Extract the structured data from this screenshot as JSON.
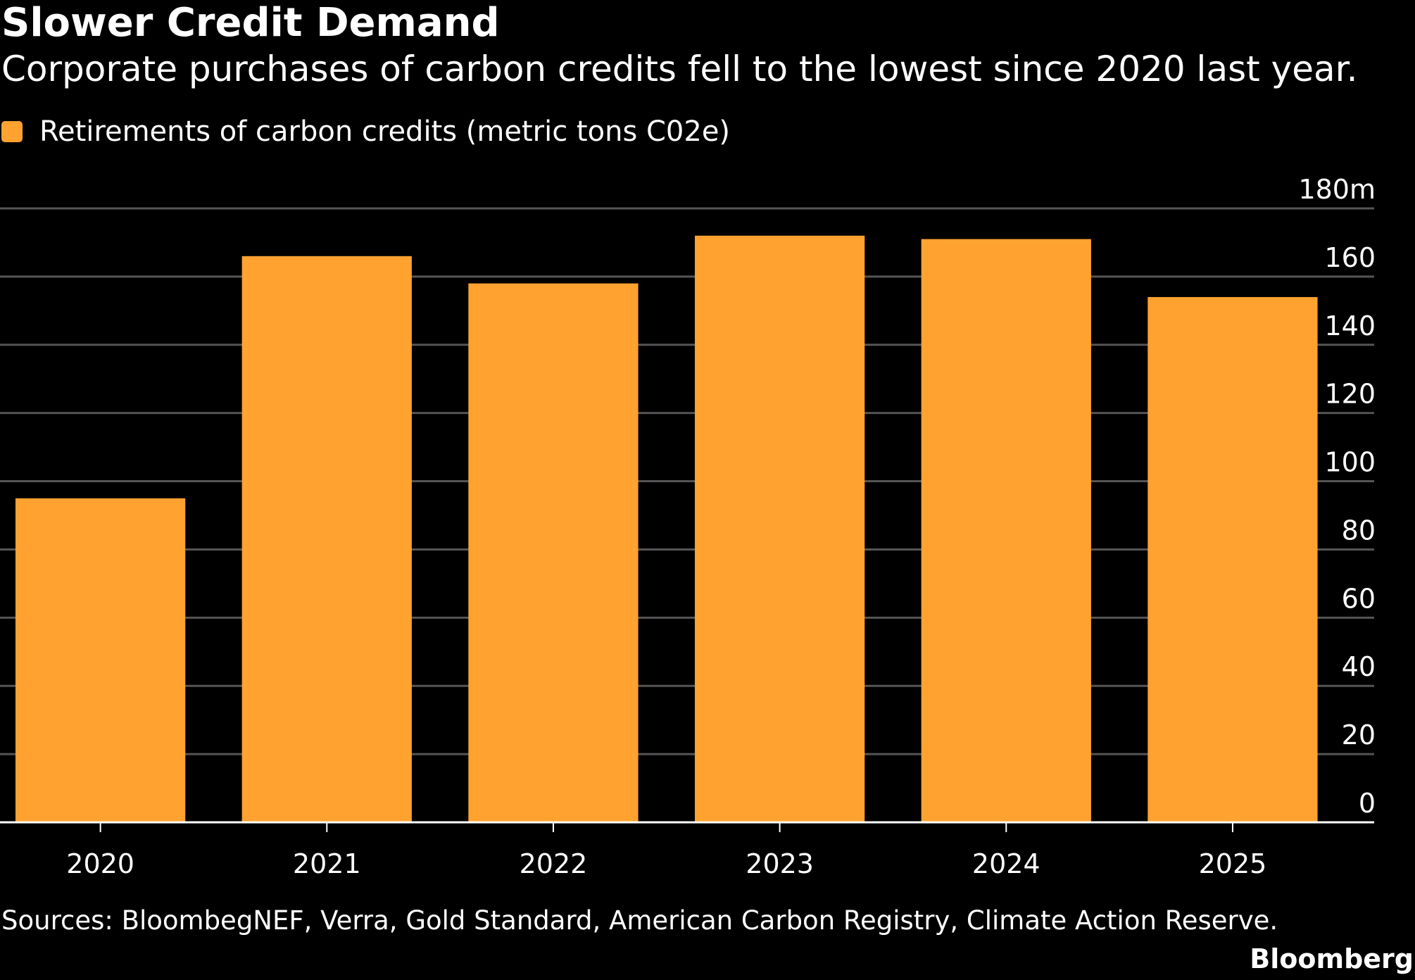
{
  "header": {
    "title": "Slower Credit Demand",
    "subtitle": "Corporate purchases of carbon credits fell to the lowest since 2020 last year."
  },
  "legend": {
    "label": "Retirements of carbon credits (metric tons C02e)",
    "color": "#FFA22F"
  },
  "chart_data": {
    "type": "bar",
    "categories": [
      "2020",
      "2021",
      "2022",
      "2023",
      "2024",
      "2025"
    ],
    "series": [
      {
        "name": "Retirements of carbon credits (metric tons C02e)",
        "values": [
          95,
          166,
          158,
          172,
          171,
          154
        ],
        "color": "#FFA22F"
      }
    ],
    "ylim": [
      0,
      180
    ],
    "yticks": [
      0,
      20,
      40,
      60,
      80,
      100,
      120,
      140,
      160,
      180
    ],
    "ytick_labels": [
      "0",
      "20",
      "40",
      "60",
      "80",
      "100",
      "120",
      "140",
      "160",
      "180m"
    ],
    "y_axis_side": "right",
    "grid": true,
    "legend_position": "top-left"
  },
  "footer": {
    "source": "Sources: BloombegNEF, Verra, Gold Standard, American Carbon Registry, Climate Action Reserve.",
    "brand": "Bloomberg"
  },
  "colors": {
    "background": "#000000",
    "text": "#ffffff",
    "gridline": "#555555",
    "axis": "#ffffff",
    "bar": "#FFA22F"
  }
}
